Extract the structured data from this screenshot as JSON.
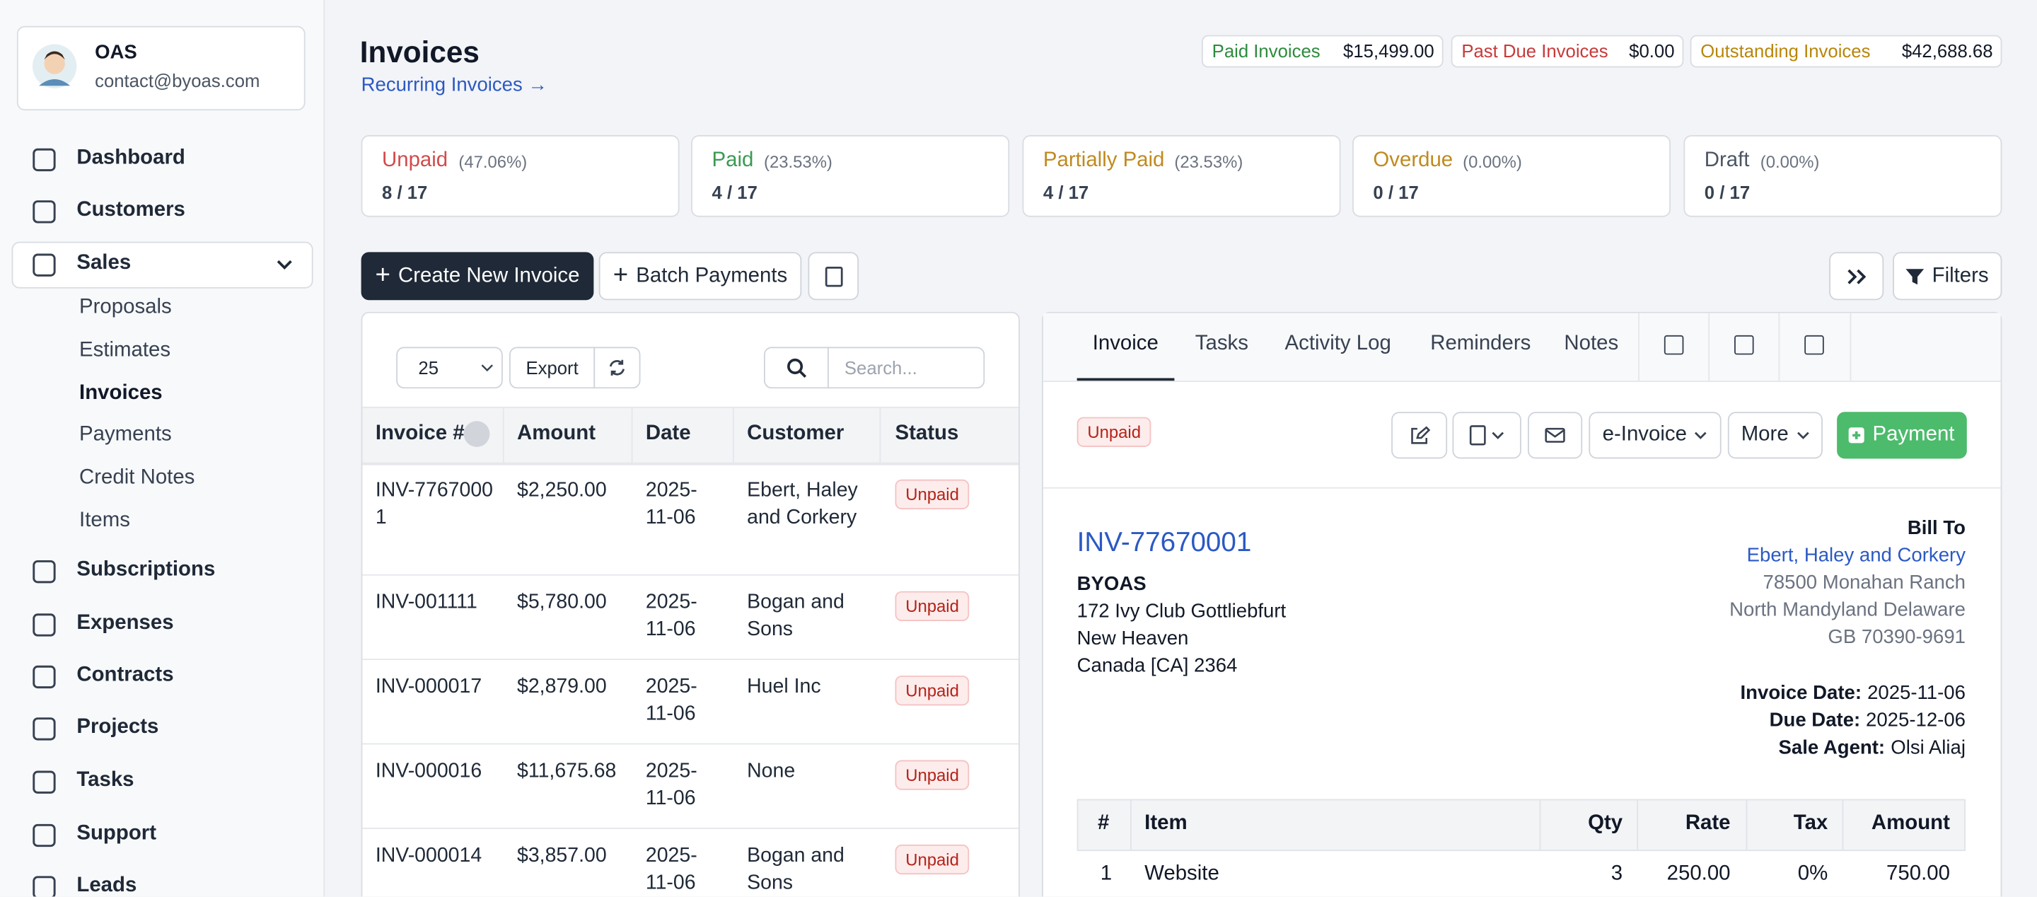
{
  "user": {
    "name": "OAS",
    "email": "contact@byoas.com"
  },
  "nav": {
    "items": [
      "Dashboard",
      "Customers",
      "Sales"
    ],
    "sales_sub": [
      "Proposals",
      "Estimates",
      "Invoices",
      "Payments",
      "Credit Notes",
      "Items"
    ],
    "more": [
      "Subscriptions",
      "Expenses",
      "Contracts",
      "Projects",
      "Tasks",
      "Support",
      "Leads"
    ]
  },
  "header": {
    "title": "Invoices",
    "link": "Recurring Invoices →"
  },
  "summary": [
    {
      "label": "Paid Invoices",
      "value": "$15,499.00"
    },
    {
      "label": "Past Due Invoices",
      "value": "$0.00"
    },
    {
      "label": "Outstanding Invoices",
      "value": "$42,688.68"
    }
  ],
  "status_cards": [
    {
      "label": "Unpaid",
      "pct": "(47.06%)",
      "count": "8 / 17"
    },
    {
      "label": "Paid",
      "pct": "(23.53%)",
      "count": "4 / 17"
    },
    {
      "label": "Partially Paid",
      "pct": "(23.53%)",
      "count": "4 / 17"
    },
    {
      "label": "Overdue",
      "pct": "(0.00%)",
      "count": "0 / 17"
    },
    {
      "label": "Draft",
      "pct": "(0.00%)",
      "count": "0 / 17"
    }
  ],
  "toolbar": {
    "create": "Create New Invoice",
    "batch": "Batch Payments",
    "filters": "Filters"
  },
  "list": {
    "page_size": "25",
    "export": "Export",
    "search": "Search...",
    "columns": [
      "Invoice #",
      "Amount",
      "Date",
      "Customer",
      "Status"
    ],
    "rows": [
      [
        "INV-77670001",
        "$2,250.00",
        "2025-11-06",
        "Ebert, Haley and Corkery",
        "Unpaid"
      ],
      [
        "INV-001111",
        "$5,780.00",
        "2025-11-06",
        "Bogan and Sons",
        "Unpaid"
      ],
      [
        "INV-000017",
        "$2,879.00",
        "2025-11-06",
        "Huel Inc",
        "Unpaid"
      ],
      [
        "INV-000016",
        "$11,675.68",
        "2025-11-06",
        "None",
        "Unpaid"
      ],
      [
        "INV-000014",
        "$3,857.00",
        "2025-11-06",
        "Bogan and Sons",
        "Unpaid"
      ]
    ]
  },
  "detail": {
    "tabs": [
      "Invoice",
      "Tasks",
      "Activity Log",
      "Reminders",
      "Notes"
    ],
    "status": "Unpaid",
    "e_invoice": "e-Invoice",
    "more": "More",
    "payment": "Payment",
    "number": "INV-77670001",
    "from": [
      "BYOAS",
      "172 Ivy Club Gottliebfurt",
      "New Heaven",
      "Canada [CA] 2364"
    ],
    "bill_to": {
      "label": "Bill To",
      "name": "Ebert, Haley and Corkery",
      "address": [
        "78500 Monahan Ranch",
        "North Mandyland Delaware",
        "GB 70390-9691"
      ]
    },
    "meta": [
      {
        "label": "Invoice Date:",
        "value": "2025-11-06"
      },
      {
        "label": "Due Date:",
        "value": "2025-12-06"
      },
      {
        "label": "Sale Agent:",
        "value": "Olsi Aliaj"
      }
    ],
    "items": {
      "columns": [
        "#",
        "Item",
        "Qty",
        "Rate",
        "Tax",
        "Amount"
      ],
      "rows": [
        [
          "1",
          "Website",
          "3",
          "250.00",
          "0%",
          "750.00"
        ]
      ]
    }
  }
}
